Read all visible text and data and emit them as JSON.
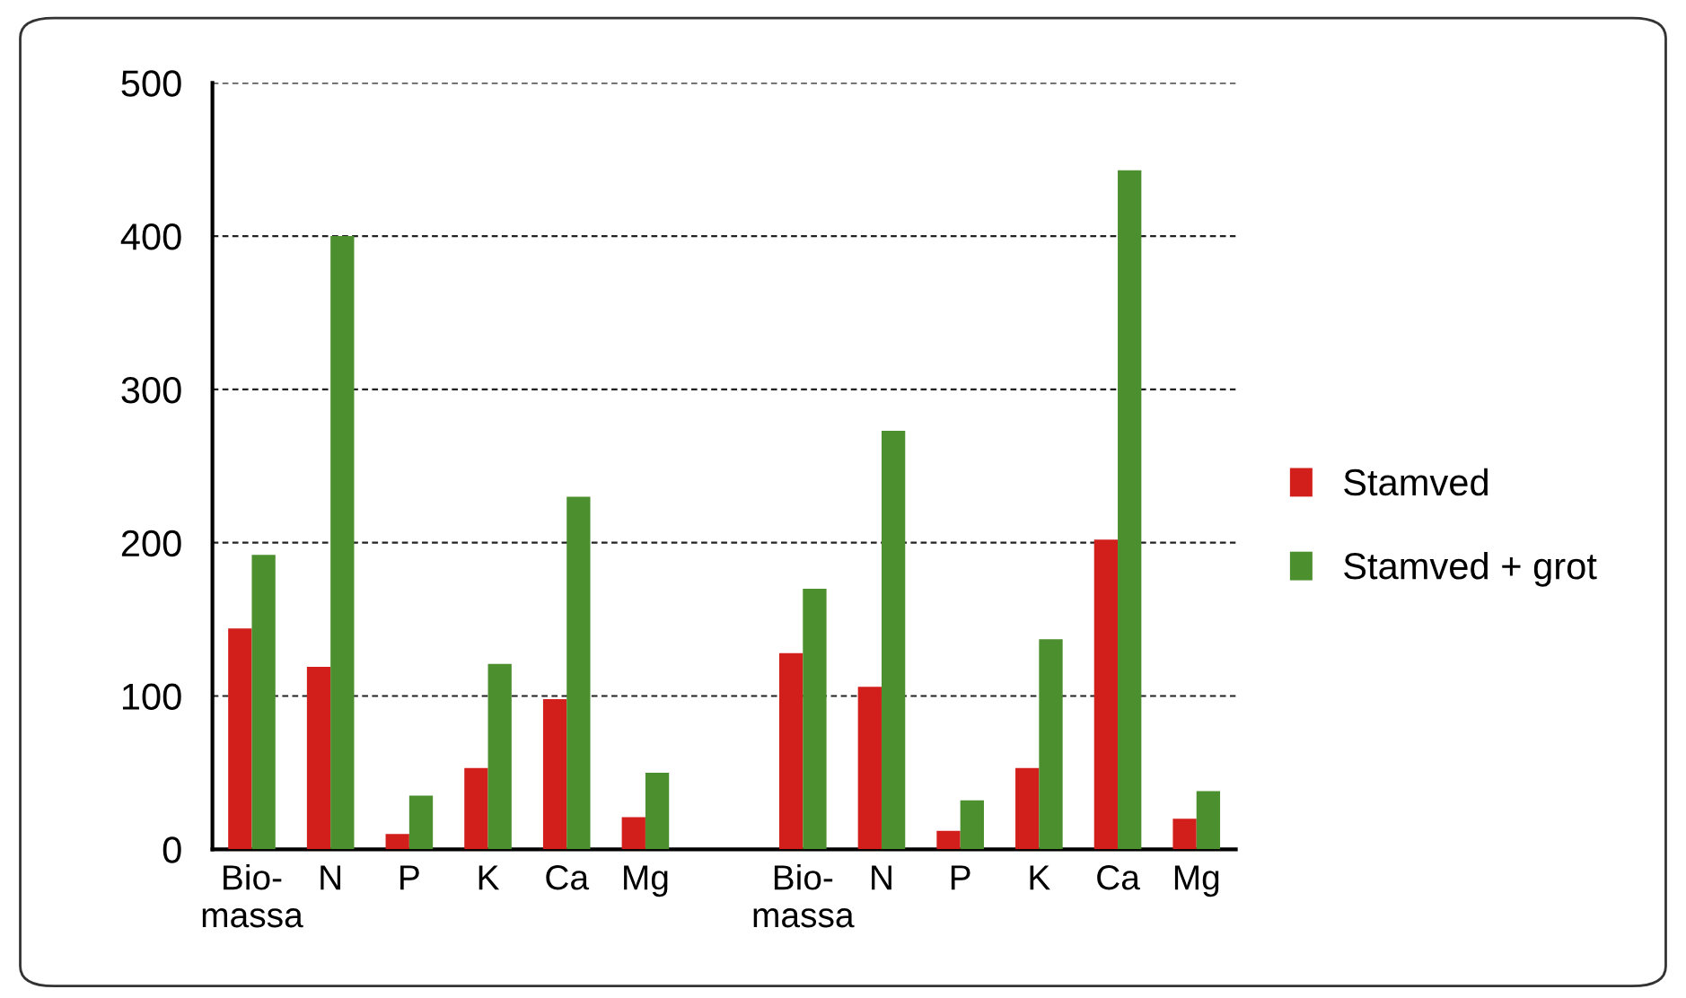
{
  "chart_data": {
    "type": "bar",
    "categories": [
      "Bio-\nmassa",
      "N",
      "P",
      "K",
      "Ca",
      "Mg",
      null,
      "Bio-\nmassa",
      "N",
      "P",
      "K",
      "Ca",
      "Mg"
    ],
    "series": [
      {
        "name": "Stamved",
        "color": "#d21f1b",
        "values": [
          144,
          119,
          10,
          53,
          98,
          21,
          null,
          128,
          106,
          12,
          53,
          202,
          20
        ]
      },
      {
        "name": "Stamved + grot",
        "color": "#4c8f2f",
        "values": [
          192,
          400,
          35,
          121,
          230,
          50,
          null,
          170,
          273,
          32,
          137,
          443,
          38
        ]
      }
    ],
    "ylim": [
      0,
      500
    ],
    "yticks": [
      0,
      100,
      200,
      300,
      400,
      500
    ],
    "grid": "y",
    "legend": "right"
  }
}
